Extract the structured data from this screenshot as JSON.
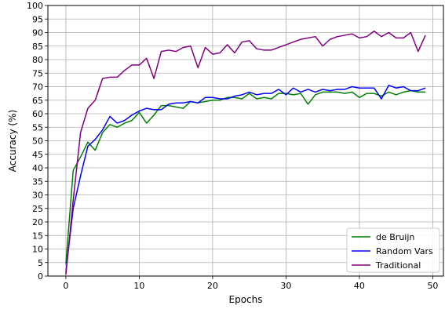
{
  "chart_data": {
    "type": "line",
    "title": "",
    "xlabel": "Epochs",
    "ylabel": "Accuracy (%)",
    "xlim": [
      -2.45,
      51.45
    ],
    "ylim": [
      0,
      100
    ],
    "xticks": [
      0,
      10,
      20,
      30,
      40,
      50
    ],
    "yticks": [
      0,
      5,
      10,
      15,
      20,
      25,
      30,
      35,
      40,
      45,
      50,
      55,
      60,
      65,
      70,
      75,
      80,
      85,
      90,
      95,
      100
    ],
    "grid": true,
    "legend_position": "lower-right",
    "x": [
      0,
      1,
      2,
      3,
      4,
      5,
      6,
      7,
      8,
      9,
      10,
      11,
      12,
      13,
      14,
      15,
      16,
      17,
      18,
      19,
      20,
      21,
      22,
      23,
      24,
      25,
      26,
      27,
      28,
      29,
      30,
      31,
      32,
      33,
      34,
      35,
      36,
      37,
      38,
      39,
      40,
      41,
      42,
      43,
      44,
      45,
      46,
      47,
      48,
      49
    ],
    "series": [
      {
        "name": "de Bruijn",
        "color": "#008000",
        "values": [
          4.5,
          39,
          44,
          49.5,
          46.5,
          53,
          56,
          55,
          56.5,
          57.5,
          60.5,
          56.5,
          59.5,
          63,
          63,
          62.5,
          62,
          64.5,
          64,
          64.5,
          65,
          65,
          66,
          66,
          65.5,
          67.5,
          65.5,
          66,
          65.5,
          67.5,
          67.5,
          67,
          67.5,
          63.5,
          67,
          68,
          68,
          68,
          67.5,
          68,
          66,
          67.5,
          67.5,
          66.5,
          68,
          67,
          68,
          68.5,
          68,
          68
        ]
      },
      {
        "name": "Random Vars",
        "color": "#0000ff",
        "values": [
          1.5,
          25,
          37,
          48,
          50.5,
          54,
          59,
          56.5,
          57.5,
          59.5,
          61,
          62,
          61.5,
          61.5,
          63.5,
          64,
          64,
          64.5,
          64,
          66,
          66,
          65.5,
          65.5,
          66.5,
          67,
          68,
          67,
          67.5,
          67.5,
          69,
          67,
          69.5,
          68,
          69,
          68,
          69,
          68.5,
          69,
          69,
          70,
          69.5,
          69.5,
          69.5,
          65.5,
          70.5,
          69.5,
          70,
          68.5,
          68.5,
          69.5
        ]
      },
      {
        "name": "Traditional",
        "color": "#800080",
        "values": [
          0.5,
          28,
          53,
          62,
          65,
          73,
          73.5,
          73.5,
          76,
          78,
          78,
          80.5,
          73,
          83,
          83.5,
          83,
          84.5,
          85,
          77,
          84.5,
          82,
          82.5,
          85.5,
          82.5,
          86.5,
          87,
          84,
          83.5,
          83.5,
          84.5,
          85.5,
          86.5,
          87.5,
          88,
          88.5,
          85,
          87.5,
          88.5,
          89,
          89.5,
          88,
          88.5,
          90.5,
          88.5,
          90,
          88,
          88,
          90,
          83,
          89
        ]
      }
    ]
  }
}
